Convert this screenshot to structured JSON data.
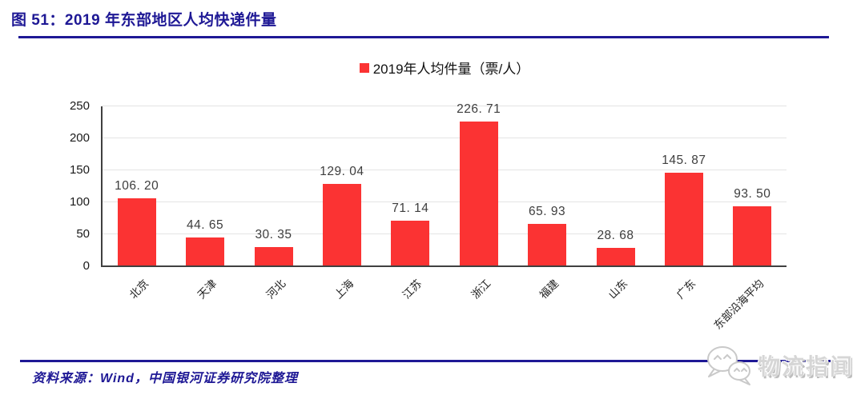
{
  "header": {
    "title": "图 51：2019 年东部地区人均快递件量"
  },
  "legend": {
    "label": "2019年人均件量（票/人）"
  },
  "chart_data": {
    "type": "bar",
    "title": "2019 年东部地区人均快递件量",
    "legend_entries": [
      "2019年人均件量（票/人）"
    ],
    "legend_position": "top-center",
    "categories": [
      "北京",
      "天津",
      "河北",
      "上海",
      "江苏",
      "浙江",
      "福建",
      "山东",
      "广东",
      "东部沿海平均"
    ],
    "values": [
      106.2,
      44.65,
      30.35,
      129.04,
      71.14,
      226.71,
      65.93,
      28.68,
      145.87,
      93.5
    ],
    "value_labels": [
      "106. 20",
      "44. 65",
      "30. 35",
      "129. 04",
      "71. 14",
      "226. 71",
      "65. 93",
      "28. 68",
      "145. 87",
      "93. 50"
    ],
    "unit": "票/人",
    "xlabel": "",
    "ylabel": "",
    "ylim": [
      0,
      250
    ],
    "yticks": [
      0,
      50,
      100,
      150,
      200,
      250
    ],
    "grid": true,
    "bar_color": "#fb3333"
  },
  "footer": {
    "source": "资料来源：Wind，中国银河证券研究院整理"
  },
  "watermark": {
    "icon": "wechat-logo",
    "text": "物流指闻"
  },
  "colors": {
    "navy": "#1e1895",
    "bar_red": "#fb3333",
    "gridline": "#e4e4e4",
    "axis": "#404040",
    "value_label": "#3d3d3d",
    "watermark_gray": "#d6d6d6"
  }
}
